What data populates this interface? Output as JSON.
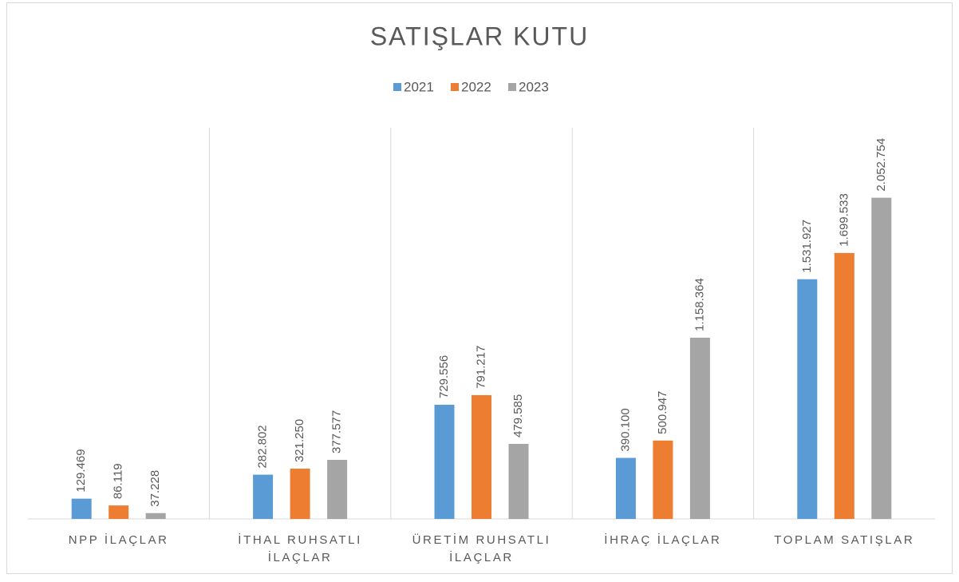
{
  "chart_data": {
    "type": "bar",
    "title": "SATIŞLAR KUTU",
    "categories": [
      "NPP İLAÇLAR",
      "İTHAL RUHSATLI İLAÇLAR",
      "ÜRETİM RUHSATLI İLAÇLAR",
      "İHRAÇ İLAÇLAR",
      "TOPLAM SATIŞLAR"
    ],
    "series": [
      {
        "name": "2021",
        "color": "#5b9bd5",
        "values": [
          129469,
          282802,
          729556,
          390100,
          1531927
        ],
        "value_labels": [
          "129.469",
          "282.802",
          "729.556",
          "390.100",
          "1.531.927"
        ]
      },
      {
        "name": "2022",
        "color": "#ed7d31",
        "values": [
          86119,
          321250,
          791217,
          500947,
          1699533
        ],
        "value_labels": [
          "86.119",
          "321.250",
          "791.217",
          "500.947",
          "1.699.533"
        ]
      },
      {
        "name": "2023",
        "color": "#a5a5a5",
        "values": [
          37228,
          377577,
          479585,
          1158364,
          2052754
        ],
        "value_labels": [
          "37.228",
          "377.577",
          "479.585",
          "1.158.364",
          "2.052.754"
        ]
      }
    ],
    "ylim": [
      0,
      2500000
    ],
    "legend": "top"
  }
}
